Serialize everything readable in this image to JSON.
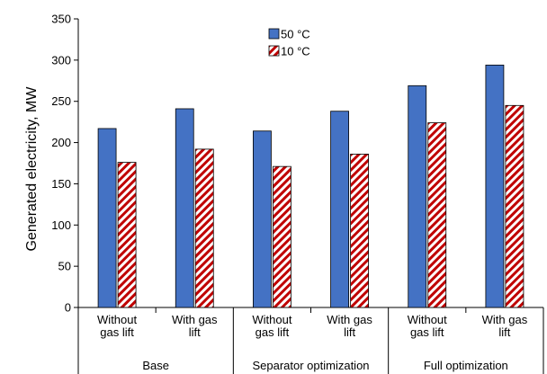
{
  "chart_data": {
    "type": "bar",
    "ylabel": "Generated electricity, MW",
    "ylim": [
      0,
      350
    ],
    "yticks": [
      0,
      50,
      100,
      150,
      200,
      250,
      300,
      350
    ],
    "categories": [
      {
        "line1": "Without",
        "line2": "gas lift",
        "group": "Base"
      },
      {
        "line1": "With gas",
        "line2": "lift",
        "group": "Base"
      },
      {
        "line1": "Without",
        "line2": "gas lift",
        "group": "Separator optimization"
      },
      {
        "line1": "With gas",
        "line2": "lift",
        "group": "Separator optimization"
      },
      {
        "line1": "Without",
        "line2": "gas lift",
        "group": "Full optimization"
      },
      {
        "line1": "With gas",
        "line2": "lift",
        "group": "Full optimization"
      }
    ],
    "groups": [
      "Base",
      "Separator optimization",
      "Full optimization"
    ],
    "series": [
      {
        "name": "50 °C",
        "color": "#4472C4",
        "pattern": "solid",
        "values": [
          217,
          241,
          214,
          238,
          269,
          294
        ]
      },
      {
        "name": "10 °C",
        "color": "#C00000",
        "pattern": "diagonal-hatch",
        "values": [
          176,
          192,
          171,
          186,
          224,
          245
        ]
      }
    ],
    "legend_position": "top-center",
    "grid": false
  }
}
